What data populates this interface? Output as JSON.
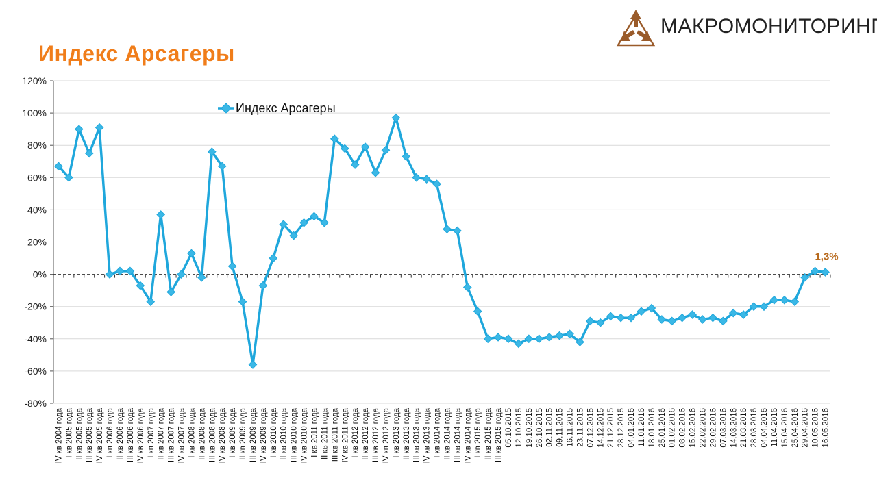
{
  "header": {
    "title": "Индекс Арсагеры",
    "logo_text": "МАКРОМОНИТОРИНГ",
    "logo_icon": "triangle-arrows-icon"
  },
  "colors": {
    "title": "#f07d1a",
    "series": "#1fa7dc",
    "marker": "#3bb8e6",
    "label": "#b86a1e",
    "logo": "#9a5b2a"
  },
  "chart_data": {
    "type": "line",
    "title": "",
    "xlabel": "",
    "ylabel": "",
    "ylim": [
      -80,
      120
    ],
    "y_ticks": [
      120,
      100,
      80,
      60,
      40,
      20,
      0,
      -20,
      -40,
      -60,
      -80
    ],
    "y_tick_format": "%",
    "grid": true,
    "legend": "top-left",
    "categories": [
      "IV кв 2004 года",
      "I кв 2005 года",
      "II кв 2005 года",
      "III кв 2005 года",
      "IV кв 2005 года",
      "I кв 2006 года",
      "II кв 2006 года",
      "III кв 2006 года",
      "IV кв 2006 года",
      "I кв 2007 года",
      "II кв 2007 года",
      "III кв 2007 года",
      "IV кв 2007 года",
      "I кв 2008 года",
      "II кв 2008 года",
      "III кв 2008 года",
      "IV кв 2008 года",
      "I кв 2009 года",
      "II кв 2009 года",
      "III кв 2009 года",
      "IV кв 2009 года",
      "I кв 2010 года",
      "II кв 2010 года",
      "III кв 2010 года",
      "IV кв 2010 года",
      "I кв 2011 года",
      "II кв 2011 года",
      "III кв 2011 года",
      "IV кв 2011 года",
      "I кв 2012 года",
      "II кв 2012 года",
      "III кв 2012 года",
      "IV кв 2012 года",
      "I кв 2013 года",
      "II кв 2013 года",
      "III кв 2013 года",
      "IV кв 2013 года",
      "I кв 2014 года",
      "II кв 2014 года",
      "III кв 2014 года",
      "IV кв 2014 года",
      "I кв 2015 года",
      "II кв 2015 года",
      "III кв 2015 года",
      "05.10.2015",
      "12.10.2015",
      "19.10.2015",
      "26.10.2015",
      "02.11.2015",
      "09.11.2015",
      "16.11.2015",
      "23.11.2015",
      "07.12.2015",
      "14.12.2015",
      "21.12.2015",
      "28.12.2015",
      "04.01.2016",
      "11.01.2016",
      "18.01.2016",
      "25.01.2016",
      "01.02.2016",
      "08.02.2016",
      "15.02.2016",
      "22.02.2016",
      "29.02.2016",
      "07.03.2016",
      "14.03.2016",
      "21.03.2016",
      "28.03.2016",
      "04.04.2016",
      "11.04.2016",
      "15.04.2016",
      "25.04.2016",
      "29.04.2016",
      "10.05.2016",
      "16.05.2016"
    ],
    "series": [
      {
        "name": "Индекс Арсагеры",
        "values": [
          67,
          60,
          90,
          75,
          91,
          0,
          2,
          2,
          -7,
          -17,
          37,
          -11,
          0,
          13,
          -2,
          76,
          67,
          5,
          -17,
          -56,
          -7,
          10,
          31,
          24,
          32,
          36,
          32,
          84,
          78,
          68,
          79,
          63,
          77,
          97,
          73,
          60,
          59,
          56,
          28,
          27,
          -8,
          -23,
          -40,
          -39,
          -40,
          -43,
          -40,
          -40,
          -39,
          -38,
          -37,
          -42,
          -29,
          -30,
          -26,
          -27,
          -27,
          -23,
          -21,
          -28,
          -29,
          -27,
          -25,
          -28,
          -27,
          -29,
          -24,
          -25,
          -20,
          -20,
          -16,
          -16,
          -17,
          -2,
          2,
          1.3
        ]
      }
    ],
    "annotations": [
      {
        "point": "16.05.2016",
        "text": "1,3%"
      }
    ]
  }
}
